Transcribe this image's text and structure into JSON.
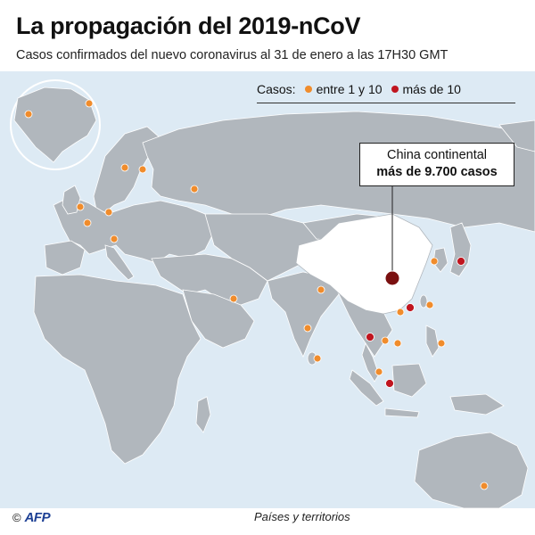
{
  "header": {
    "title": "La propagación del 2019-nCoV",
    "subtitle": "Casos confirmados del nuevo coronavirus al 31 de enero a las 17H30 GMT"
  },
  "legend": {
    "label": "Casos:",
    "items": [
      {
        "label": "entre 1 y 10",
        "color": "#f08c2c"
      },
      {
        "label": "más de 10",
        "color": "#c0151f"
      }
    ]
  },
  "callout": {
    "line1": "China continental",
    "line2": "más de 9.700 casos"
  },
  "colors": {
    "ocean": "#ddeaf4",
    "land": "#b1b7bd",
    "border": "#ffffff",
    "china": "#ffffff",
    "orange": "#f08c2c",
    "red": "#c0151f",
    "china_marker": "#7a1010"
  },
  "footer": {
    "copyright": "©",
    "logo": "AFP",
    "note": "Países y territorios"
  }
}
